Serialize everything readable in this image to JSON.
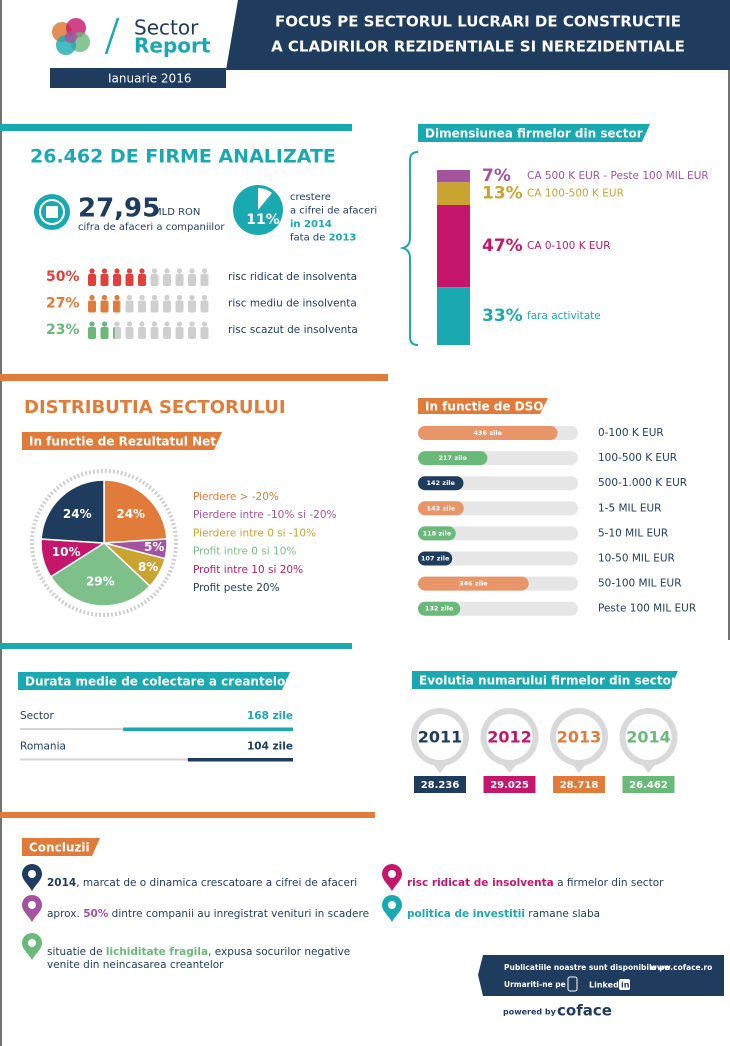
{
  "header": {
    "logo": [
      "Sector",
      "Report"
    ],
    "date": "Ianuarie 2016",
    "title": [
      "FOCUS PE SECTORUL LUCRARI DE CONSTRUCTIE",
      "A CLADIRILOR REZIDENTIALE SI NEREZIDENTIALE"
    ]
  },
  "firms": {
    "title": "26.462 DE FIRME ANALIZATE",
    "turnover": {
      "value": "27,95",
      "unit": "MLD RON",
      "label": "cifra de afaceri a companiilor"
    },
    "growth": {
      "value": 11,
      "value_label": "11%",
      "color": "#1aa9b1",
      "lines": [
        [
          {
            "text": "crestere"
          }
        ],
        [
          {
            "text": "a cifrei de afaceri"
          }
        ],
        [
          {
            "text": "in 2014",
            "color": "#1aa9b1"
          }
        ],
        [
          {
            "text": "fata de "
          },
          {
            "text": "2013",
            "color": "#1aa9b1"
          }
        ]
      ]
    },
    "risk": {
      "values": [
        50,
        27,
        23
      ],
      "value_labels": [
        "50%",
        "27%",
        "23%"
      ],
      "labels": [
        "risc ridicat de insolventa",
        "risc mediu de insolventa",
        "risc scazut de insolventa"
      ],
      "colors": [
        "#e2403b",
        "#e07b3a",
        "#6ab97a"
      ]
    }
  },
  "size": {
    "title": "Dimensiunea firmelor din sector",
    "values": [
      7,
      13,
      47,
      33
    ],
    "value_labels": [
      "7%",
      "13%",
      "47%",
      "33%"
    ],
    "labels": [
      "CA 500 K EUR - Peste 100 MIL EUR",
      "CA 100-500 K EUR",
      "CA 0-100 K EUR",
      "fara activitate"
    ],
    "colors": [
      "#a4539f",
      "#c9a430",
      "#c4176c",
      "#1aa9b1"
    ]
  },
  "distribution": {
    "title": "DISTRIBUTIA SECTORULUI",
    "net": {
      "title": "In functie de Rezultatul Net",
      "values": [
        24,
        5,
        8,
        29,
        10,
        24
      ],
      "value_labels": [
        "24%",
        "5%",
        "8%",
        "29%",
        "10%",
        "24%"
      ],
      "labels": [
        "Pierdere > -20%",
        "Pierdere intre -10% si -20%",
        "Pierdere intre 0 si -10%",
        "Profit intre 0 si 10%",
        "Profit intre 10 si 20%",
        "Profit peste 20%"
      ],
      "colors": [
        "#e07b3a",
        "#a4539f",
        "#c9a430",
        "#7dc08a",
        "#c4176c",
        "#1f3b5e"
      ]
    },
    "dso": {
      "title": "In functie de DSO",
      "categories": [
        "0-100 K EUR",
        "100-500 K EUR",
        "500-1.000 K EUR",
        "1-5 MIL EUR",
        "5-10 MIL EUR",
        "10-50 MIL EUR",
        "50-100 MIL EUR",
        "Peste 100 MIL EUR"
      ],
      "values": [
        436,
        217,
        142,
        143,
        118,
        107,
        346,
        132
      ],
      "value_labels": [
        "436 zile",
        "217 zile",
        "142 zile",
        "143 zile",
        "118 zile",
        "107 zile",
        "346 zile",
        "132 zile"
      ],
      "colors": [
        "#e8956a",
        "#6ab97a",
        "#1f3b5e",
        "#e8956a",
        "#6ab97a",
        "#1f3b5e",
        "#e8956a",
        "#6ab97a"
      ],
      "xlim": [
        0,
        500
      ]
    }
  },
  "collection": {
    "title": "Durata medie de colectare a creantelor",
    "categories": [
      "Sector",
      "Romania"
    ],
    "values": [
      168,
      104
    ],
    "value_labels": [
      "168 zile",
      "104 zile"
    ],
    "colors": [
      "#1aa9b1",
      "#1f3b5e"
    ],
    "xlim": [
      0,
      270
    ]
  },
  "evolution": {
    "title": "Evolutia numarului firmelor din sector",
    "years": [
      "2011",
      "2012",
      "2013",
      "2014"
    ],
    "values": [
      "28.236",
      "29.025",
      "28.718",
      "26.462"
    ],
    "colors": [
      "#1f3b5e",
      "#c4176c",
      "#e07b3a",
      "#6ab97a"
    ]
  },
  "conclusions": {
    "title": "Concluzii",
    "items": [
      {
        "color": "#1f3b5e",
        "lines": [
          [
            {
              "text": "2014",
              "color": "#1f3b5e"
            },
            {
              "text": ", marcat de o dinamica crescatoare a cifrei de afaceri"
            }
          ]
        ]
      },
      {
        "color": "#a4539f",
        "lines": [
          [
            {
              "text": "aprox. "
            },
            {
              "text": "50%",
              "color": "#a4539f"
            },
            {
              "text": " dintre companii au inregistrat venituri in scadere"
            }
          ]
        ]
      },
      {
        "color": "#6ab97a",
        "lines": [
          [
            {
              "text": "situatie de "
            },
            {
              "text": "lichiditate fragila",
              "color": "#6ab97a"
            },
            {
              "text": ", expusa socurilor negative"
            }
          ],
          [
            {
              "text": "venite din neincasarea creantelor"
            }
          ]
        ]
      },
      {
        "color": "#c4176c",
        "lines": [
          [
            {
              "text": "risc ridicat de insolventa",
              "color": "#c4176c"
            },
            {
              "text": " a firmelor din sector"
            }
          ]
        ]
      },
      {
        "color": "#1aa9b1",
        "lines": [
          [
            {
              "text": "politica de investitii",
              "color": "#1aa9b1"
            },
            {
              "text": " ramane slaba"
            }
          ]
        ]
      }
    ]
  },
  "footer": {
    "available": "Publicatiile noastre sunt disponibile pe",
    "site": "www.coface.ro",
    "follow": "Urmariti-ne pe",
    "linked": "Linked",
    "in": "in",
    "powered": "powered by",
    "brand": "coface"
  }
}
